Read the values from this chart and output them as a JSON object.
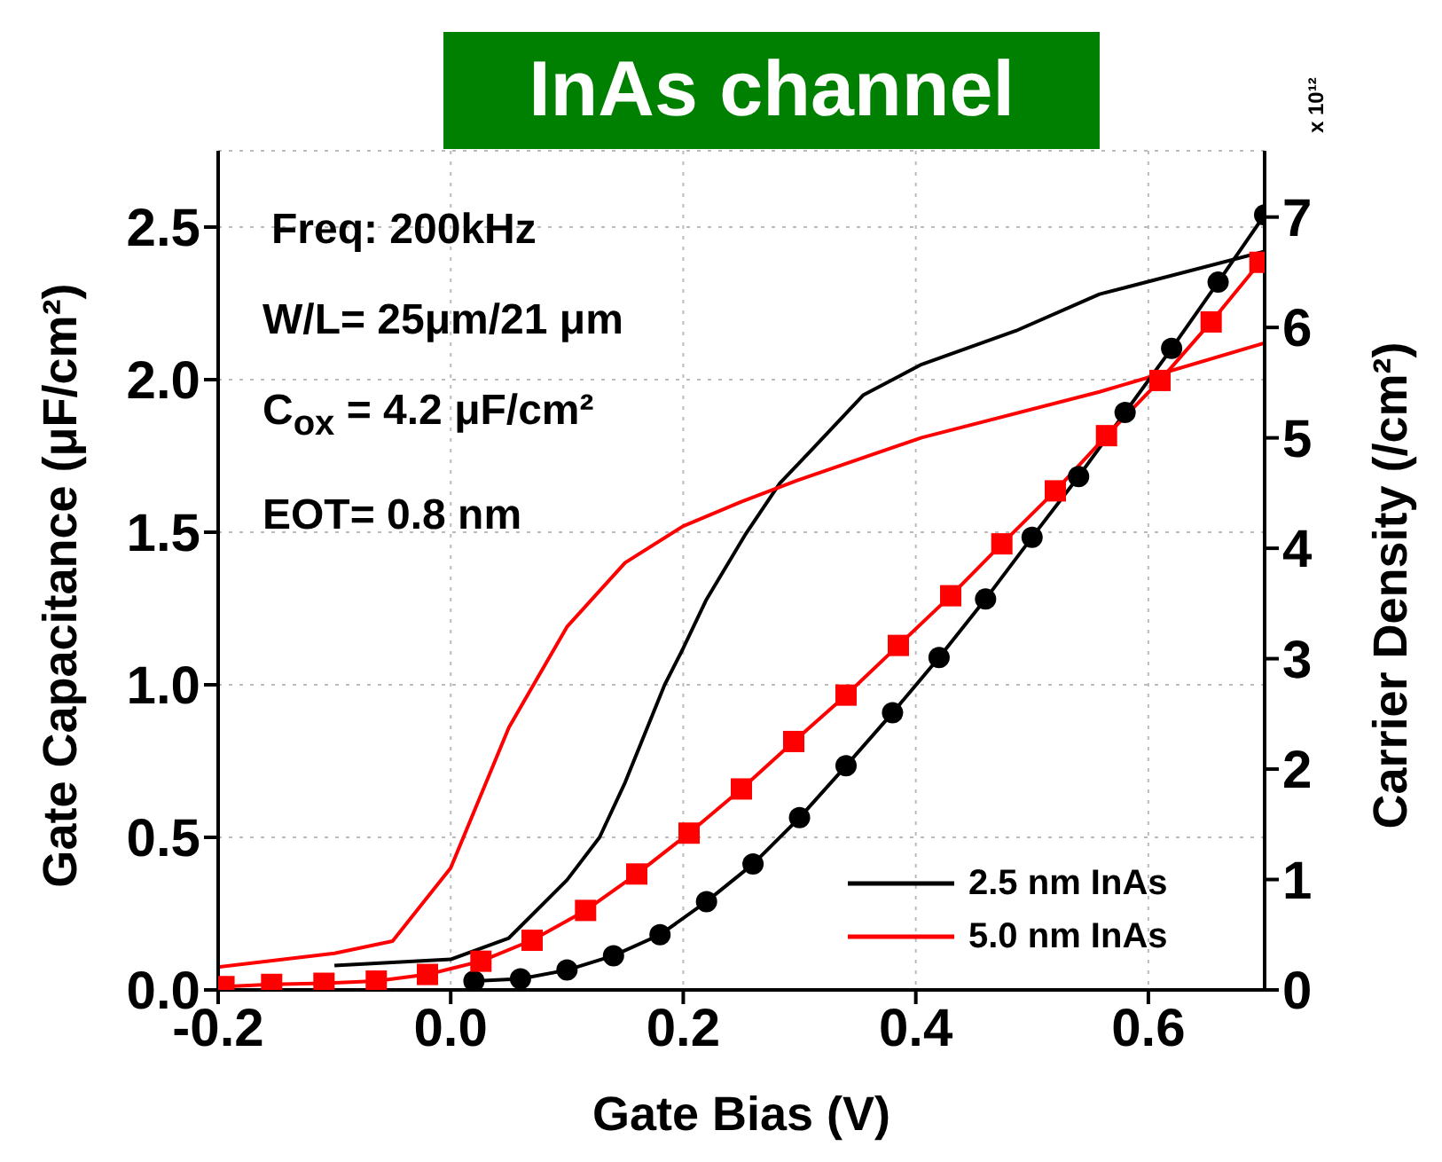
{
  "chart_data": {
    "type": "line",
    "title": "InAs channel",
    "xlabel": "Gate Bias (V)",
    "ylabel": "Gate Capacitance (μF/cm²)",
    "y2label": "Carrier Density (/cm²)",
    "annotations": [
      "Freq: 200kHz",
      "W/L= 25μm/21 μm",
      "C$_{ox}$ = 4.2 μF/cm²",
      "EOT= 0.8 nm",
      "x 10¹²"
    ],
    "xlim": [
      -0.2,
      0.7
    ],
    "xticks": [
      {
        "value": -0.2,
        "label": "-0.2"
      },
      {
        "value": 0,
        "label": "0.0"
      },
      {
        "value": 0.2,
        "label": "0.2"
      },
      {
        "value": 0.4,
        "label": "0.4"
      },
      {
        "value": 0.6,
        "label": "0.6"
      }
    ],
    "ylim": [
      0,
      2.75
    ],
    "yticks": [
      {
        "value": 0,
        "label": "0.0"
      },
      {
        "value": 0.5,
        "label": "0.5"
      },
      {
        "value": 1,
        "label": "1.0"
      },
      {
        "value": 1.5,
        "label": "1.5"
      },
      {
        "value": 2,
        "label": "2.0"
      },
      {
        "value": 2.5,
        "label": "2.5"
      }
    ],
    "y2lim": [
      0,
      7.6
    ],
    "y2ticks": [
      0,
      1,
      2,
      3,
      4,
      5,
      6,
      7
    ],
    "grid": true,
    "legend": "bottom right",
    "series": [
      {
        "name": "2.5 nm InAs",
        "color": "#000000",
        "marker": "none",
        "x": [
          -0.1,
          0,
          0.05,
          0.1,
          0.128,
          0.15,
          0.184,
          0.2,
          0.22,
          0.253,
          0.283,
          0.303,
          0.355,
          0.405,
          0.486,
          0.558,
          0.7
        ],
        "values": [
          0.08,
          0.1,
          0.17,
          0.36,
          0.5,
          0.68,
          1.0,
          1.12,
          1.28,
          1.49,
          1.66,
          1.74,
          1.95,
          2.05,
          2.16,
          2.28,
          2.42
        ]
      },
      {
        "name": "5.0 nm InAs",
        "color": "#ff0000",
        "marker": "none",
        "x": [
          -0.2,
          -0.1,
          -0.05,
          0,
          0.05,
          0.1,
          0.15,
          0.2,
          0.25,
          0.298,
          0.405,
          0.558,
          0.7
        ],
        "values": [
          0.075,
          0.12,
          0.16,
          0.4,
          0.86,
          1.19,
          1.4,
          1.52,
          1.6,
          1.67,
          1.81,
          1.96,
          2.12
        ]
      },
      {
        "color": "#000000",
        "marker": "circle",
        "axis": "y2",
        "x": [
          0.02,
          0.06,
          0.1,
          0.14,
          0.18,
          0.22,
          0.26,
          0.3,
          0.34,
          0.38,
          0.42,
          0.46,
          0.5,
          0.54,
          0.58,
          0.62,
          0.66,
          0.7
        ],
        "values": [
          0.08,
          0.1,
          0.18,
          0.31,
          0.5,
          0.8,
          1.14,
          1.56,
          2.03,
          2.51,
          3.01,
          3.54,
          4.1,
          4.65,
          5.23,
          5.81,
          6.41,
          7.02
        ]
      },
      {
        "color": "#ff0000",
        "marker": "square",
        "axis": "y2",
        "x": [
          -0.195,
          -0.154,
          -0.109,
          -0.064,
          -0.02,
          0.026,
          0.07,
          0.116,
          0.16,
          0.205,
          0.25,
          0.295,
          0.34,
          0.385,
          0.43,
          0.474,
          0.52,
          0.564,
          0.61,
          0.654,
          0.696
        ],
        "values": [
          0.03,
          0.05,
          0.06,
          0.08,
          0.14,
          0.26,
          0.45,
          0.72,
          1.05,
          1.42,
          1.82,
          2.25,
          2.67,
          3.12,
          3.57,
          4.04,
          4.52,
          5.02,
          5.52,
          6.05,
          6.59
        ]
      }
    ]
  }
}
